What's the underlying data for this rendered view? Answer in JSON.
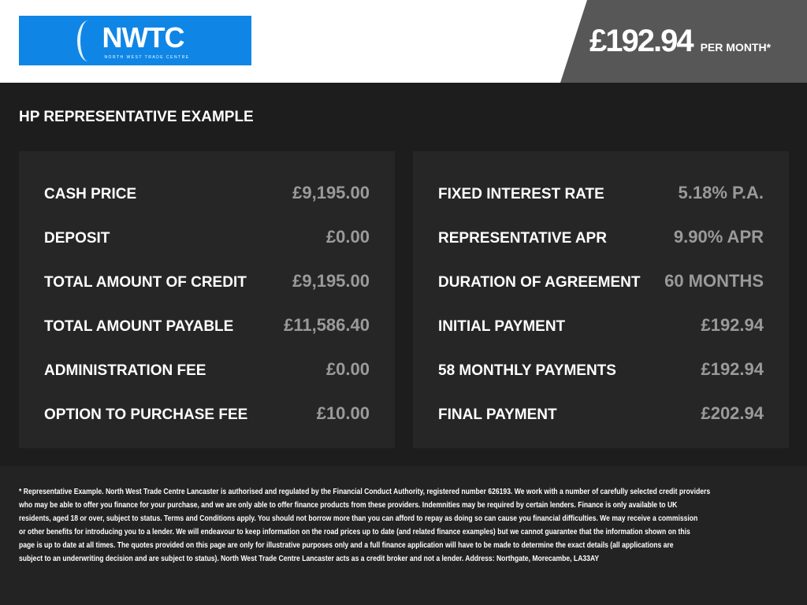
{
  "header": {
    "logo_text": "NWTC",
    "logo_subtext": "NORTH WEST TRADE CENTRE",
    "monthly_price": "£192.94",
    "per_month_label": "PER MONTH*"
  },
  "section_title": "HP REPRESENTATIVE EXAMPLE",
  "left_panel": [
    {
      "label": "CASH PRICE",
      "value": "£9,195.00"
    },
    {
      "label": "DEPOSIT",
      "value": "£0.00"
    },
    {
      "label": "TOTAL AMOUNT OF CREDIT",
      "value": "£9,195.00"
    },
    {
      "label": "TOTAL AMOUNT PAYABLE",
      "value": "£11,586.40"
    },
    {
      "label": "ADMINISTRATION FEE",
      "value": "£0.00"
    },
    {
      "label": "OPTION TO PURCHASE FEE",
      "value": "£10.00"
    }
  ],
  "right_panel": [
    {
      "label": "FIXED INTEREST RATE",
      "value": "5.18% P.A."
    },
    {
      "label": "REPRESENTATIVE APR",
      "value": "9.90% APR"
    },
    {
      "label": "DURATION OF AGREEMENT",
      "value": "60 MONTHS"
    },
    {
      "label": "INITIAL PAYMENT",
      "value": "£192.94"
    },
    {
      "label": "58 MONTHLY PAYMENTS",
      "value": "£192.94"
    },
    {
      "label": "FINAL PAYMENT",
      "value": "£202.94"
    }
  ],
  "disclaimer_lines": [
    "* Representative Example. North West Trade Centre Lancaster is authorised and regulated by the Financial Conduct Authority, registered number 626193. We work with a number of carefully selected credit providers",
    "who may be able to offer you finance for your purchase, and we are only able to offer finance products from these providers. Indemnities may be required by certain lenders. Finance is only available to UK",
    "residents, aged 18 or over, subject to status. Terms and Conditions apply. You should not borrow more than you can afford to repay as doing so can cause you financial difficulties. We may receive a commission",
    "or other benefits for introducing you to a lender. We will endeavour to keep information on the road prices up to date (and related finance examples) but we cannot guarantee that the information shown on this",
    "page is up to date at all times. The quotes provided on this page are only for illustrative purposes only and a full finance application will have to be made to determine the exact details (all applications are",
    "subject to an underwriting decision and are subject to status). North West Trade Centre Lancaster acts as a credit broker and not a lender. Address: Northgate, Morecambe, LA33AY"
  ]
}
